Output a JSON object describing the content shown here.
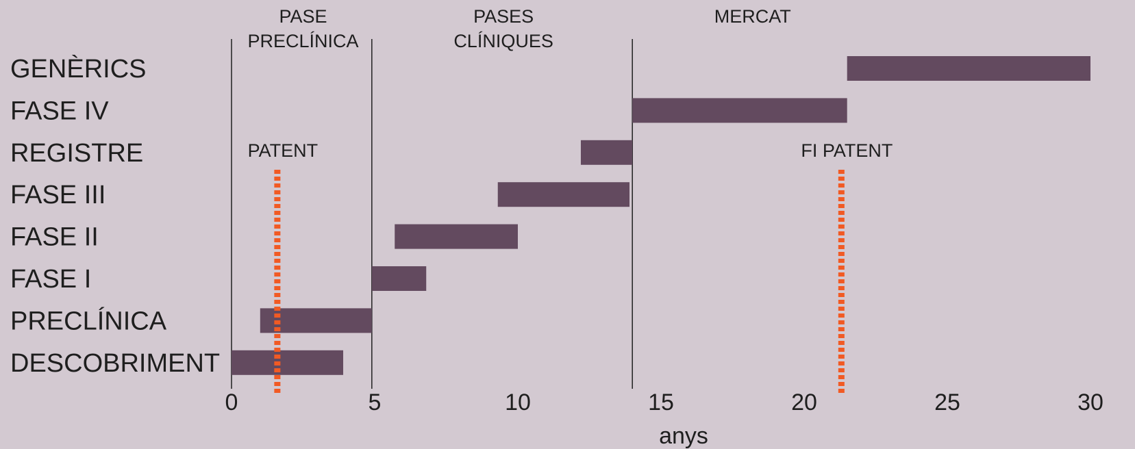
{
  "chart_data": {
    "type": "bar",
    "orientation": "horizontal",
    "categories": [
      "GENÈRICS",
      "FASE IV",
      "REGISTRE",
      "FASE III",
      "FASE II",
      "FASE I",
      "PRECLÍNICA",
      "DESCOBRIMENT"
    ],
    "ranges": [
      [
        21.5,
        30
      ],
      [
        14,
        21.5
      ],
      [
        12.2,
        14
      ],
      [
        9.3,
        13.9
      ],
      [
        5.7,
        10
      ],
      [
        4.9,
        6.8
      ],
      [
        1,
        4.9
      ],
      [
        0,
        3.9
      ]
    ],
    "xlabel": "anys",
    "xlim": [
      0,
      30
    ],
    "xticks": [
      0,
      5,
      10,
      15,
      20,
      25,
      30
    ],
    "phase_dividers": [
      0,
      4.9,
      14
    ],
    "phases": [
      {
        "lines": [
          "PASE",
          "PRECLÍNICA"
        ],
        "x": 2.5
      },
      {
        "lines": [
          "PASES",
          "CLÍNIQUES"
        ],
        "x": 9.5
      },
      {
        "lines": [
          "MERCAT"
        ],
        "x": 18.2
      }
    ],
    "annotations": [
      {
        "label": "PATENT",
        "x": 1.6
      },
      {
        "label": "FI PATENT",
        "x": 21.3
      }
    ],
    "colors": {
      "background": "#d3c9d1",
      "bar": "#634a5f",
      "patent_line": "#f15a24",
      "divider": "#2a2a2a"
    },
    "grid": false,
    "legend": "none"
  }
}
